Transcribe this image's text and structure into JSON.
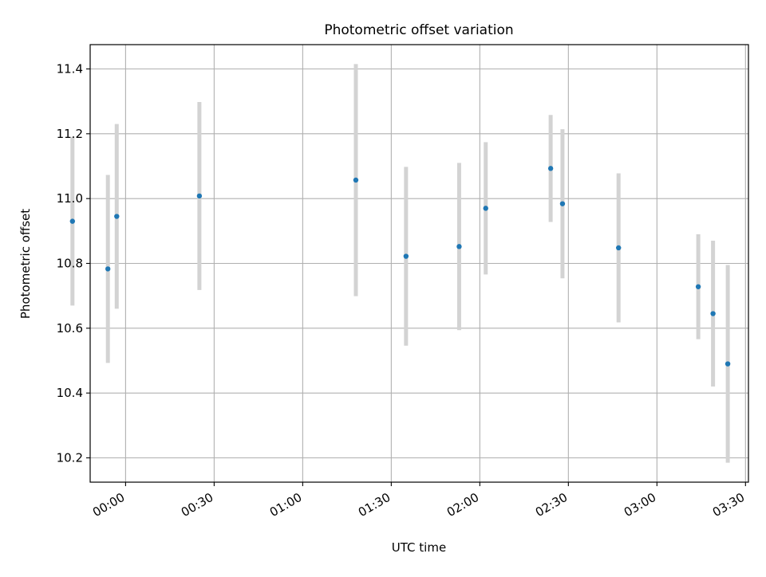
{
  "chart_data": {
    "type": "scatter",
    "title": "Photometric offset variation",
    "xlabel": "UTC time",
    "ylabel": "Photometric offset",
    "x_ticks": [
      "00:00",
      "00:30",
      "01:00",
      "01:30",
      "02:00",
      "02:30",
      "03:00",
      "03:30"
    ],
    "y_ticks": [
      "10.2",
      "10.4",
      "10.6",
      "10.8",
      "11.0",
      "11.2",
      "11.4"
    ],
    "xlim": [
      "23:48",
      "03:31"
    ],
    "ylim": [
      10.125,
      11.475
    ],
    "grid": true,
    "points": [
      {
        "time": "23:42",
        "y": 10.93,
        "err": 0.26
      },
      {
        "time": "23:54",
        "y": 10.783,
        "err": 0.29
      },
      {
        "time": "23:57",
        "y": 10.945,
        "err": 0.285
      },
      {
        "time": "00:25",
        "y": 11.008,
        "err": 0.29
      },
      {
        "time": "01:18",
        "y": 11.057,
        "err": 0.358
      },
      {
        "time": "01:35",
        "y": 10.822,
        "err": 0.276
      },
      {
        "time": "01:53",
        "y": 10.852,
        "err": 0.258
      },
      {
        "time": "02:02",
        "y": 10.97,
        "err": 0.204
      },
      {
        "time": "02:24",
        "y": 11.093,
        "err": 0.165
      },
      {
        "time": "02:28",
        "y": 10.984,
        "err": 0.23
      },
      {
        "time": "02:47",
        "y": 10.848,
        "err": 0.23
      },
      {
        "time": "03:14",
        "y": 10.728,
        "err": 0.162
      },
      {
        "time": "03:19",
        "y": 10.645,
        "err": 0.225
      },
      {
        "time": "03:24",
        "y": 10.49,
        "err": 0.305
      }
    ],
    "colors": {
      "points": "#1f77b4",
      "errorbars": "#d3d3d3",
      "grid": "#b0b0b0"
    }
  }
}
